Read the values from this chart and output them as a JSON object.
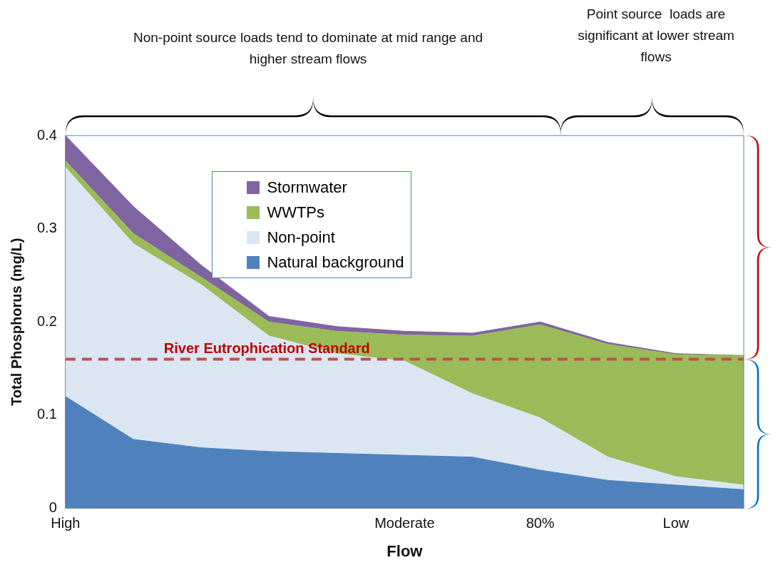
{
  "chart_data": {
    "type": "area",
    "stacked": true,
    "categories": [
      "High",
      null,
      null,
      null,
      null,
      "Moderate",
      null,
      "80%",
      null,
      "Low",
      null
    ],
    "series": [
      {
        "name": "Natural background",
        "color": "#4f81bd",
        "values": [
          0.12,
          0.074,
          0.065,
          0.061,
          0.059,
          0.057,
          0.055,
          0.041,
          0.03,
          0.025,
          0.02
        ]
      },
      {
        "name": "Non-point",
        "color": "#dce6f2",
        "values": [
          0.246,
          0.21,
          0.175,
          0.124,
          0.107,
          0.101,
          0.068,
          0.056,
          0.025,
          0.009,
          0.005
        ]
      },
      {
        "name": "WWTPs",
        "color": "#9bbb59",
        "values": [
          0.007,
          0.011,
          0.008,
          0.015,
          0.024,
          0.028,
          0.062,
          0.1,
          0.121,
          0.131,
          0.139
        ]
      },
      {
        "name": "Stormwater",
        "color": "#8064a2",
        "values": [
          0.027,
          0.029,
          0.013,
          0.006,
          0.005,
          0.004,
          0.003,
          0.003,
          0.002,
          0.001,
          0
        ]
      }
    ],
    "ylim": [
      0,
      0.4
    ],
    "yticks": [
      0,
      0.1,
      0.2,
      0.3,
      0.4
    ],
    "xlabel": "Flow",
    "ylabel": "Total Phosphorus (mg/L)",
    "ref_lines": [
      {
        "axis": "y",
        "value": 0.16,
        "label": "River Eutrophication Standard",
        "color": "#c0504d",
        "line_style": "dashed"
      }
    ],
    "annotations": [
      "Non-point source loads tend to dominate at mid range and higher stream flows",
      "Point source  loads are significant at lower stream flows"
    ],
    "legend": "top",
    "grid": false
  }
}
